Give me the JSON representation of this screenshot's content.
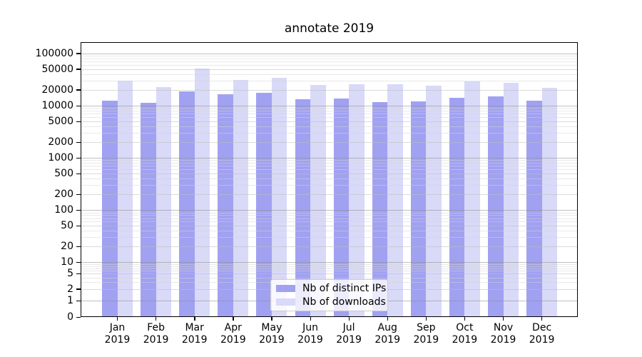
{
  "chart_data": {
    "type": "bar",
    "title": "annotate 2019",
    "categories": [
      "Jan 2019",
      "Feb 2019",
      "Mar 2019",
      "Apr 2019",
      "May 2019",
      "Jun 2019",
      "Jul 2019",
      "Aug 2019",
      "Sep 2019",
      "Oct 2019",
      "Nov 2019",
      "Dec 2019"
    ],
    "series": [
      {
        "name": "Nb of distinct IPs",
        "color": "#a1a1f2",
        "values": [
          12500,
          11500,
          18500,
          16300,
          17700,
          13100,
          13500,
          11800,
          12100,
          14300,
          15100,
          12400
        ]
      },
      {
        "name": "Nb of downloads",
        "color": "#d9d9f8",
        "values": [
          30000,
          22500,
          51000,
          31000,
          34500,
          25000,
          25500,
          26000,
          24500,
          29500,
          27500,
          22000
        ]
      }
    ],
    "xlabel": "",
    "ylabel": "",
    "yscale": "symlog",
    "yticks": [
      0,
      1,
      2,
      5,
      10,
      20,
      50,
      100,
      200,
      500,
      1000,
      2000,
      5000,
      10000,
      20000,
      50000,
      100000
    ],
    "ylim": [
      0,
      170000
    ],
    "grid": true,
    "legend_position": "lower center"
  }
}
